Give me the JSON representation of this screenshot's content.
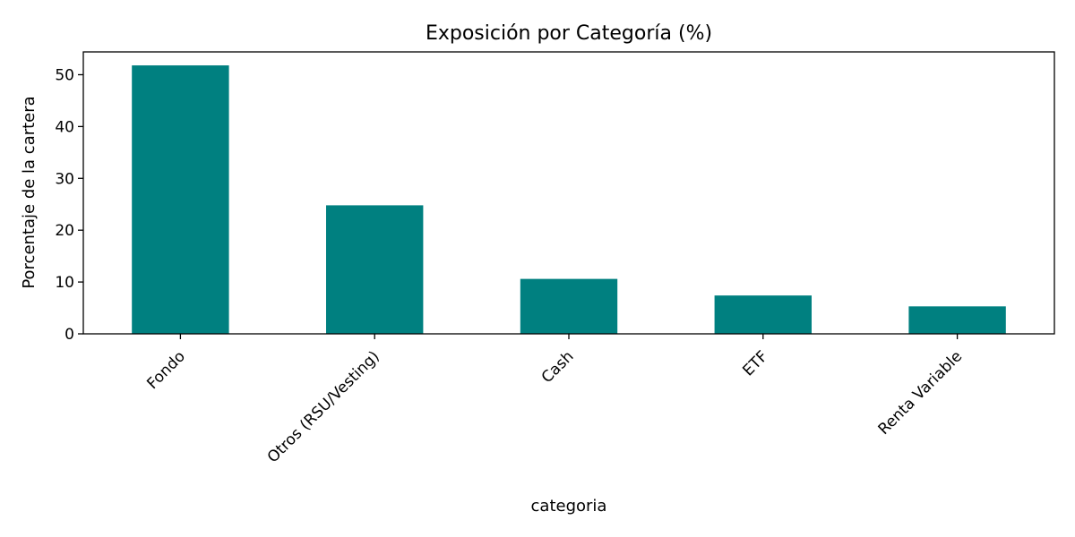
{
  "chart_data": {
    "type": "bar",
    "title": "Exposición por Categoría (%)",
    "xlabel": "categoria",
    "ylabel": "Porcentaje de la cartera",
    "categories": [
      "Fondo",
      "Otros (RSU/Vesting)",
      "Cash",
      "ETF",
      "Renta Variable"
    ],
    "values": [
      51.8,
      24.8,
      10.6,
      7.4,
      5.3
    ],
    "ylim": [
      0,
      54.4
    ],
    "yticks": [
      0,
      10,
      20,
      30,
      40,
      50
    ],
    "ytick_labels": [
      "0",
      "10",
      "20",
      "30",
      "40",
      "50"
    ],
    "grid": false,
    "bar_color": "#008080",
    "xtick_rotation_deg": 45
  }
}
